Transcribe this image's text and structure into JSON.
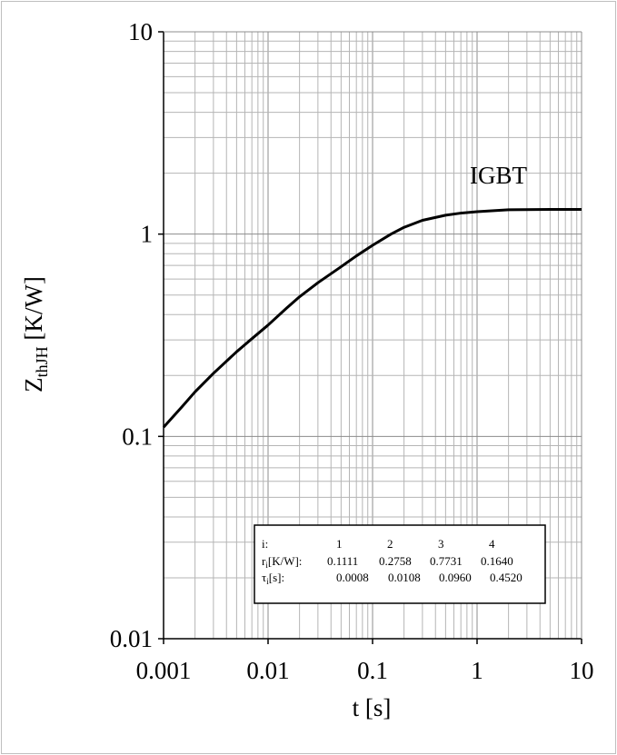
{
  "chart_data": {
    "type": "line",
    "scale": {
      "x": "log",
      "y": "log"
    },
    "xlim": [
      0.001,
      10
    ],
    "ylim": [
      0.01,
      10
    ],
    "x_ticks": [
      "0.001",
      "0.01",
      "0.1",
      "1",
      "10"
    ],
    "y_ticks": [
      "10",
      "1",
      "0.1",
      "0.01"
    ],
    "xlabel": "t [s]",
    "ylabel_main": "Z",
    "ylabel_sub": "thJH",
    "ylabel_unit": " [K/W]",
    "grid": true,
    "annotation": "IGBT",
    "series": [
      {
        "name": "IGBT",
        "color": "#000000",
        "x": [
          0.001,
          0.0015,
          0.002,
          0.003,
          0.005,
          0.007,
          0.01,
          0.015,
          0.02,
          0.03,
          0.05,
          0.07,
          0.1,
          0.15,
          0.2,
          0.3,
          0.5,
          0.7,
          1,
          2,
          5,
          10
        ],
        "y": [
          0.111,
          0.14,
          0.166,
          0.205,
          0.262,
          0.304,
          0.355,
          0.43,
          0.49,
          0.575,
          0.69,
          0.78,
          0.88,
          1.0,
          1.08,
          1.17,
          1.24,
          1.27,
          1.29,
          1.32,
          1.324,
          1.325
        ]
      }
    ],
    "table": {
      "header_label": "i:",
      "header_values": [
        "1",
        "2",
        "3",
        "4"
      ],
      "rows": [
        {
          "label_main": "r",
          "label_sub": "i",
          "label_rest": "[K/W]:",
          "values": [
            "0.1111",
            "0.2758",
            "0.7731",
            "0.1640"
          ]
        },
        {
          "label_main": "τ",
          "label_sub": "i",
          "label_rest": "[s]:",
          "values": [
            "0.0008",
            "0.0108",
            "0.0960",
            "0.4520"
          ]
        }
      ]
    }
  }
}
